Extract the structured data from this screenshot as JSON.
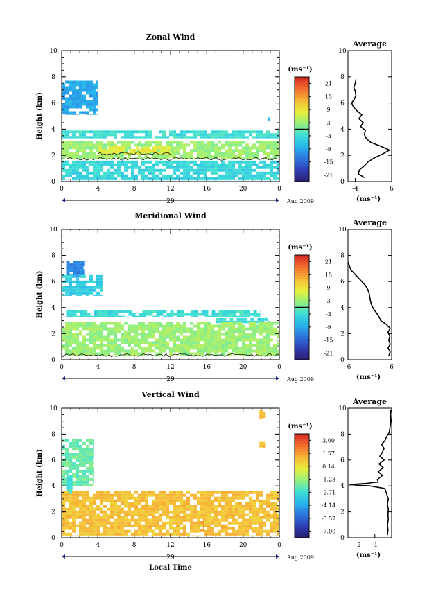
{
  "chart_data": [
    {
      "type": "heatmap",
      "title": "Zonal Wind",
      "xlabel": "",
      "ylabel": "Height (km)",
      "xlim": [
        0,
        24
      ],
      "ylim": [
        0,
        10
      ],
      "x_ticks": [
        "0",
        "4",
        "8",
        "12",
        "16",
        "20",
        "0"
      ],
      "y_ticks": [
        "0",
        "2",
        "4",
        "6",
        "8",
        "10"
      ],
      "date_label": "29",
      "date_suffix": "Aug 2009",
      "colorbar": {
        "unit": "(ms⁻¹)",
        "ticks": [
          "21",
          "15",
          "9",
          "3",
          "-3",
          "-9",
          "-15",
          "-21"
        ],
        "range": [
          -24,
          24
        ]
      },
      "zero_contour": true,
      "regions": [
        {
          "t0": 0,
          "t1": 4,
          "h0": 5.1,
          "h1": 7.7,
          "value": -9
        },
        {
          "t0": 22.7,
          "t1": 23.0,
          "h0": 4.6,
          "h1": 4.9,
          "value": -9
        },
        {
          "t0": 0,
          "t1": 24,
          "h0": 3.3,
          "h1": 3.9,
          "value": -3
        },
        {
          "t0": 0,
          "t1": 24,
          "h0": 1.7,
          "h1": 3.1,
          "value": 3
        },
        {
          "t0": 4,
          "t1": 12,
          "h0": 2.1,
          "h1": 2.7,
          "value": 8
        },
        {
          "t0": 0,
          "t1": 24,
          "h0": 0.1,
          "h1": 1.6,
          "value": -4
        }
      ],
      "average_profile": {
        "title": "Average",
        "xlabel": "(ms⁻¹)",
        "xlim": [
          -6,
          6
        ],
        "x_ticks": [
          "-4",
          "6"
        ],
        "height": [
          0.3,
          0.6,
          0.9,
          1.2,
          1.5,
          1.8,
          2.1,
          2.4,
          2.7,
          3.0,
          3.3,
          3.6,
          3.9,
          4.2,
          4.5,
          4.8,
          5.1,
          5.4,
          5.7,
          6.0,
          6.3,
          6.6,
          6.9,
          7.2,
          7.5,
          7.8
        ],
        "value": [
          -1.5,
          -3.2,
          -2.8,
          -1.5,
          -0.5,
          1.2,
          3.5,
          5.4,
          3.0,
          0.2,
          -1.0,
          -1.5,
          -1.2,
          -2.5,
          -1.8,
          -3.0,
          -2.2,
          -3.5,
          -4.5,
          -5.0,
          -4.2,
          -3.8,
          -4.0,
          -4.4,
          -4.0,
          -3.8
        ]
      }
    },
    {
      "type": "heatmap",
      "title": "Meridional Wind",
      "xlabel": "",
      "ylabel": "Height (km)",
      "xlim": [
        0,
        24
      ],
      "ylim": [
        0,
        10
      ],
      "x_ticks": [
        "0",
        "4",
        "8",
        "12",
        "16",
        "20",
        "0"
      ],
      "y_ticks": [
        "0",
        "2",
        "4",
        "6",
        "8",
        "10"
      ],
      "date_label": "29",
      "date_suffix": "Aug 2009",
      "colorbar": {
        "unit": "(ms⁻¹)",
        "ticks": [
          "21",
          "15",
          "9",
          "3",
          "-3",
          "-9",
          "-15",
          "-21"
        ],
        "range": [
          -24,
          24
        ]
      },
      "zero_contour": true,
      "regions": [
        {
          "t0": 0.5,
          "t1": 2.5,
          "h0": 6.3,
          "h1": 7.6,
          "value": -12
        },
        {
          "t0": 0,
          "t1": 4.5,
          "h0": 4.9,
          "h1": 6.5,
          "value": -5
        },
        {
          "t0": 0.5,
          "t1": 22,
          "h0": 3.3,
          "h1": 3.8,
          "value": -3
        },
        {
          "t0": 17,
          "t1": 23,
          "h0": 2.8,
          "h1": 3.2,
          "value": -3
        },
        {
          "t0": 0,
          "t1": 24,
          "h0": 0.3,
          "h1": 2.9,
          "value": 3
        }
      ],
      "average_profile": {
        "title": "Average",
        "xlabel": "(ms⁻¹)",
        "xlim": [
          -6,
          6
        ],
        "x_ticks": [
          "-6",
          "6"
        ],
        "height": [
          0.3,
          0.6,
          0.9,
          1.2,
          1.5,
          1.8,
          2.1,
          2.4,
          2.7,
          3.0,
          3.3,
          3.6,
          3.9,
          4.2,
          4.5,
          4.8,
          5.1,
          5.4,
          5.7,
          6.0,
          6.3,
          6.6,
          6.9,
          7.2,
          7.5
        ],
        "value": [
          5.2,
          5.6,
          5.0,
          5.6,
          5.2,
          5.5,
          5.0,
          5.6,
          4.6,
          3.0,
          2.5,
          1.8,
          1.0,
          0.5,
          0.2,
          0.0,
          -0.2,
          -0.6,
          -1.2,
          -2.2,
          -3.2,
          -4.2,
          -5.2,
          -5.6,
          -6.0
        ]
      }
    },
    {
      "type": "heatmap",
      "title": "Vertical Wind",
      "xlabel": "Local Time",
      "ylabel": "Height (km)",
      "xlim": [
        0,
        24
      ],
      "ylim": [
        0,
        10
      ],
      "x_ticks": [
        "0",
        "4",
        "8",
        "12",
        "16",
        "20",
        "0"
      ],
      "y_ticks": [
        "0",
        "2",
        "4",
        "6",
        "8",
        "10"
      ],
      "date_label": "29",
      "date_suffix": "Aug 2009",
      "colorbar": {
        "unit": "(ms⁻¹)",
        "ticks": [
          "3.00",
          "1.57",
          "0.14",
          "-1.28",
          "-2.71",
          "-4.14",
          "-5.57",
          "-7.00"
        ],
        "range": [
          -7.7,
          3.7
        ]
      },
      "zero_contour": false,
      "regions": [
        {
          "t0": 0,
          "t1": 3.5,
          "h0": 4.0,
          "h1": 7.6,
          "value": -2.0
        },
        {
          "t0": 0.5,
          "t1": 1.2,
          "h0": 3.2,
          "h1": 4.8,
          "value": -2.6
        },
        {
          "t0": 0,
          "t1": 24,
          "h0": 0.1,
          "h1": 3.6,
          "value": 0.9
        },
        {
          "t0": 15.2,
          "t1": 15.7,
          "h0": 0.5,
          "h1": 1.5,
          "value": 1.6
        },
        {
          "t0": 21.8,
          "t1": 22.5,
          "h0": 9.2,
          "h1": 9.9,
          "value": 0.9
        },
        {
          "t0": 21.8,
          "t1": 22.5,
          "h0": 6.9,
          "h1": 7.4,
          "value": 0.9
        }
      ],
      "average_profile": {
        "title": "Average",
        "xlabel": "(ms⁻¹)",
        "xlim": [
          -2.6,
          0
        ],
        "x_ticks": [
          "-2",
          "-1"
        ],
        "height": [
          0.2,
          0.6,
          1.0,
          1.4,
          1.8,
          2.2,
          2.6,
          3.0,
          3.4,
          3.8,
          4.0,
          4.1,
          4.2,
          4.3,
          4.5,
          4.8,
          5.1,
          5.4,
          5.7,
          6.0,
          6.3,
          6.6,
          6.9,
          7.2,
          7.5,
          7.8,
          8.1,
          8.5,
          9.0,
          9.5,
          9.9
        ],
        "value": [
          -0.25,
          -0.22,
          -0.25,
          -0.2,
          -0.22,
          -0.2,
          -0.25,
          -0.2,
          -0.3,
          -0.4,
          -1.3,
          -2.5,
          -1.5,
          -0.8,
          -0.85,
          -0.55,
          -0.8,
          -0.5,
          -0.75,
          -0.45,
          -0.7,
          -0.55,
          -0.45,
          -0.6,
          -0.4,
          -0.3,
          -0.15,
          -0.1,
          -0.05,
          -0.08,
          -0.05
        ]
      }
    }
  ]
}
